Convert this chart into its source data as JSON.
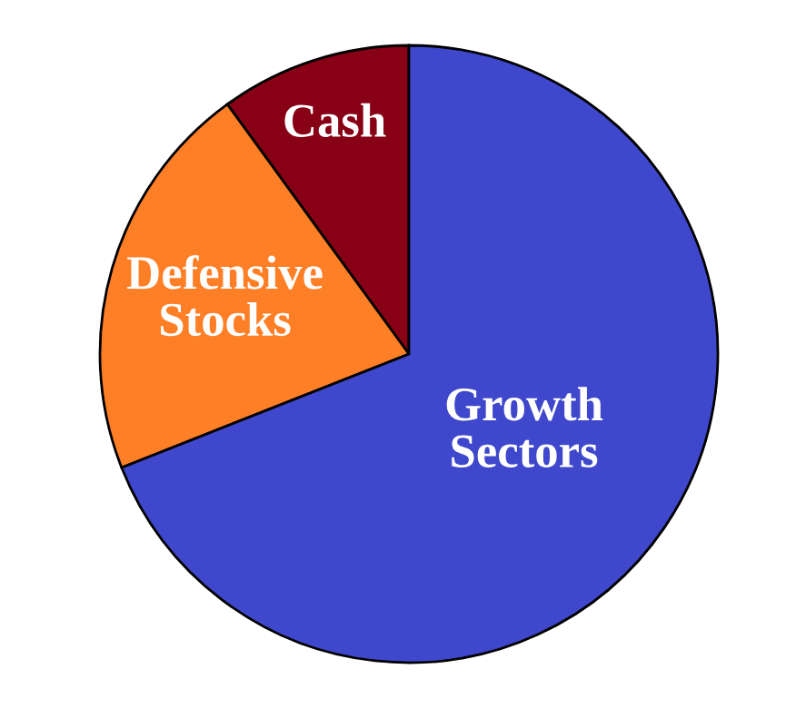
{
  "chart_data": {
    "type": "pie",
    "categories": [
      "Cash",
      "Defensive Stocks",
      "Growth Sectors"
    ],
    "values": [
      10,
      21,
      69
    ],
    "colors": [
      "#880015",
      "#ff7f27",
      "#3f48cc"
    ]
  }
}
